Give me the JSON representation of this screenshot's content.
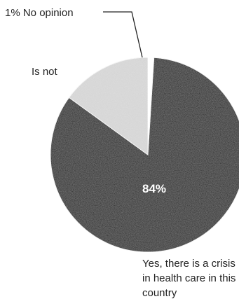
{
  "chart_data": {
    "type": "pie",
    "slices": [
      {
        "label": "Yes, there is a crisis in health care in this country",
        "value": 84,
        "data_label": "84%",
        "color": "#1e1e1e",
        "label_lines": [
          "Yes, there is a crisis",
          "in health care in this",
          "country"
        ]
      },
      {
        "label": "Is not",
        "value": 15,
        "data_label": "",
        "color": "#dedede",
        "label_lines": [
          "Is not"
        ]
      },
      {
        "label": "1% No opinion",
        "value": 1,
        "data_label": "",
        "color": "#ffffff",
        "label_lines": [
          "1% No opinion"
        ]
      }
    ]
  }
}
